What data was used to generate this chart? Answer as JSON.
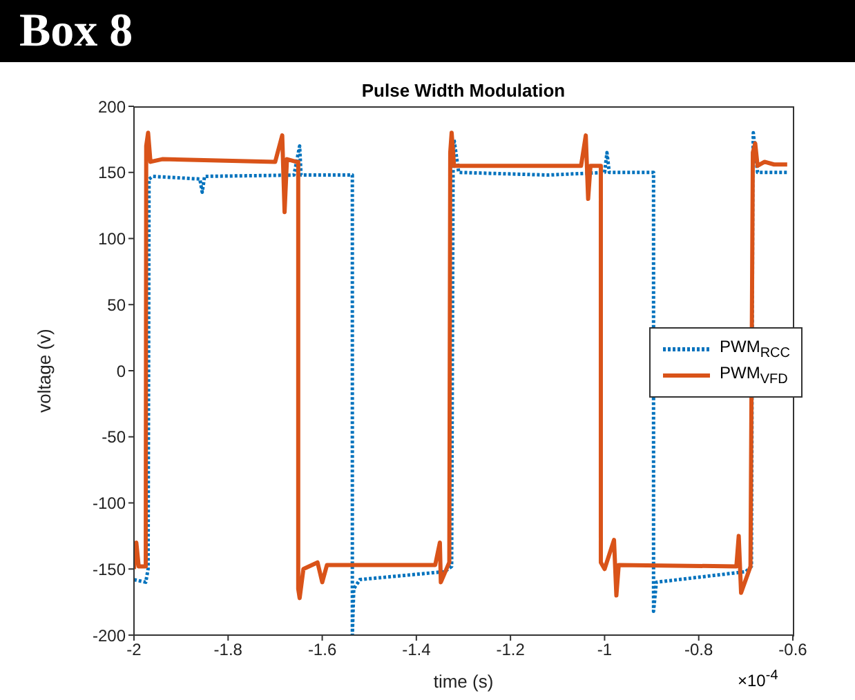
{
  "chart_data": {
    "type": "line",
    "title": "Box 8",
    "subtitle": "Pulse Width Modulation",
    "xlabel": "time (s)",
    "ylabel": "voltage (v)",
    "annotations": [
      "×10$^{-4}$"
    ],
    "xlim": [
      -2,
      -0.6
    ],
    "xticks": [
      -2,
      -1.8,
      -1.6,
      -1.4,
      -1.2,
      -1,
      -0.8,
      -0.6
    ],
    "ylim": [
      -200,
      200
    ],
    "yticks": [
      -200,
      -150,
      -100,
      -50,
      0,
      50,
      100,
      150,
      200
    ],
    "grid": false,
    "legend": "right",
    "marker": "none",
    "series": [
      {
        "name": "PWM$_{RCC}$",
        "color": "#0072bd",
        "line_style": "dotted",
        "x": [
          -2,
          -1.975,
          -1.97,
          -1.968,
          -1.96,
          -1.86,
          -1.855,
          -1.85,
          -1.66,
          -1.648,
          -1.645,
          -1.54,
          -1.536,
          -1.536,
          -1.533,
          -1.52,
          -1.34,
          -1.325,
          -1.322,
          -1.32,
          -1.31,
          -1.12,
          -1,
          -0.995,
          -0.99,
          -0.9,
          -0.896,
          -0.896,
          -0.89,
          -0.7,
          -0.688,
          -0.685,
          -0.684,
          -0.675,
          -0.612
        ],
        "values": [
          -158,
          -160,
          -150,
          145,
          147,
          145,
          135,
          147,
          148,
          170,
          148,
          148,
          148,
          -200,
          -165,
          -158,
          -152,
          -148,
          150,
          175,
          150,
          148,
          150,
          165,
          150,
          150,
          150,
          -182,
          -160,
          -152,
          -148,
          150,
          180,
          150,
          150
        ]
      },
      {
        "name": "PWM$_{VFD}$",
        "color": "#d95319",
        "line_style": "solid",
        "x": [
          -2,
          -1.995,
          -1.99,
          -1.975,
          -1.974,
          -1.97,
          -1.965,
          -1.94,
          -1.7,
          -1.685,
          -1.68,
          -1.675,
          -1.655,
          -1.651,
          -1.651,
          -1.648,
          -1.64,
          -1.61,
          -1.6,
          -1.59,
          -1.36,
          -1.35,
          -1.348,
          -1.33,
          -1.328,
          -1.325,
          -1.32,
          -1.05,
          -1.04,
          -1.035,
          -1.03,
          -1.008,
          -1.008,
          -1,
          -0.98,
          -0.975,
          -0.97,
          -0.72,
          -0.715,
          -0.71,
          -0.69,
          -0.685,
          -0.68,
          -0.675,
          -0.66,
          -0.64,
          -0.612
        ],
        "values": [
          -150,
          -130,
          -148,
          -148,
          170,
          180,
          158,
          160,
          158,
          178,
          120,
          160,
          158,
          158,
          -165,
          -172,
          -150,
          -145,
          -160,
          -147,
          -147,
          -130,
          -160,
          -145,
          165,
          180,
          155,
          155,
          178,
          130,
          155,
          155,
          -145,
          -150,
          -128,
          -170,
          -147,
          -148,
          -125,
          -168,
          -148,
          165,
          172,
          155,
          158,
          156,
          156
        ]
      }
    ]
  }
}
